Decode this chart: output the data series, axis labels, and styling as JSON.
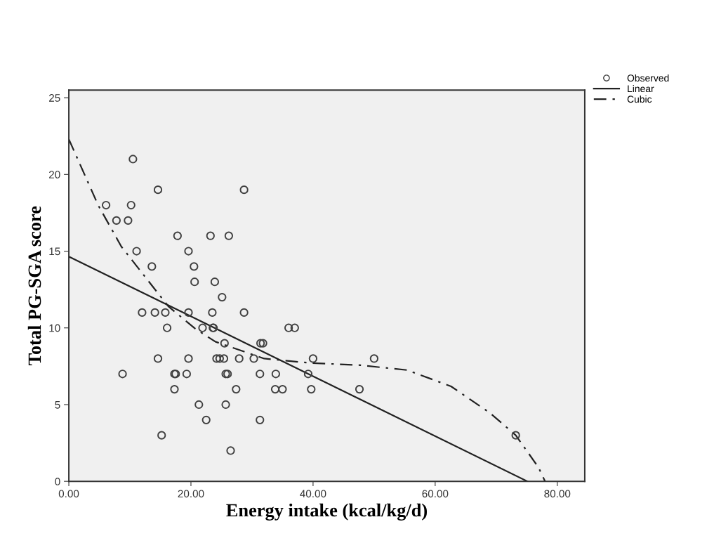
{
  "chart_data": {
    "type": "scatter",
    "xlabel": "Energy intake (kcal/kg/d)",
    "ylabel": "Total PG-SGA score",
    "xlim": [
      0,
      84.5
    ],
    "ylim": [
      0,
      25.5
    ],
    "xticks": [
      {
        "value": 0,
        "label": "0.00"
      },
      {
        "value": 20,
        "label": "20.00"
      },
      {
        "value": 40,
        "label": "40.00"
      },
      {
        "value": 60,
        "label": "60.00"
      },
      {
        "value": 80,
        "label": "80.00"
      }
    ],
    "yticks": [
      0,
      5,
      10,
      15,
      20,
      25
    ],
    "grid": false,
    "legend": "top right",
    "series": [
      {
        "name": "Observed",
        "marker": "circle",
        "color": "#404040",
        "x": [
          10.5,
          14.6,
          6.1,
          10.2,
          7.8,
          9.7,
          17.8,
          23.2,
          26.2,
          11.1,
          19.6,
          13.6,
          20.5,
          20.6,
          23.9,
          25.1,
          12.0,
          14.1,
          15.8,
          19.6,
          23.5,
          28.7,
          16.1,
          21.9,
          23.6,
          23.7,
          36.0,
          37.0,
          25.5,
          31.4,
          31.8,
          14.6,
          19.6,
          24.2,
          24.7,
          25.4,
          27.9,
          30.3,
          40.0,
          50.0,
          8.8,
          17.3,
          17.5,
          19.3,
          25.7,
          26.0,
          31.3,
          33.9,
          39.2,
          17.3,
          27.4,
          33.8,
          35.0,
          39.7,
          47.6,
          21.3,
          25.7,
          22.5,
          31.3,
          15.2,
          73.2,
          26.5,
          28.7
        ],
        "values": [
          21,
          19,
          18,
          18,
          17,
          17,
          16,
          16,
          16,
          15,
          15,
          14,
          14,
          13,
          13,
          12,
          11,
          11,
          11,
          11,
          11,
          11,
          10,
          10,
          10,
          10,
          10,
          10,
          9,
          9,
          9,
          8,
          8,
          8,
          8,
          8,
          8,
          8,
          8,
          8,
          7,
          7,
          7,
          7,
          7,
          7,
          7,
          7,
          7,
          6,
          6,
          6,
          6,
          6,
          6,
          5,
          5,
          4,
          4,
          3,
          3,
          2,
          19
        ]
      },
      {
        "name": "Linear",
        "type": "line",
        "line_style": "solid",
        "color": "#222222",
        "x": [
          0,
          75.1
        ],
        "values": [
          14.65,
          0
        ]
      },
      {
        "name": "Cubic",
        "type": "line",
        "line_style": "dashdot",
        "color": "#222222",
        "x": [
          0,
          4.8,
          8.6,
          16.3,
          20.7,
          24,
          32,
          39.3,
          47.7,
          55.4,
          62.6,
          69,
          73.2,
          76.9,
          78
        ],
        "values": [
          22.3,
          18.0,
          15.3,
          11.4,
          9.95,
          9.1,
          8.0,
          7.72,
          7.57,
          7.25,
          6.19,
          4.45,
          3.0,
          0.92,
          0
        ]
      }
    ]
  }
}
